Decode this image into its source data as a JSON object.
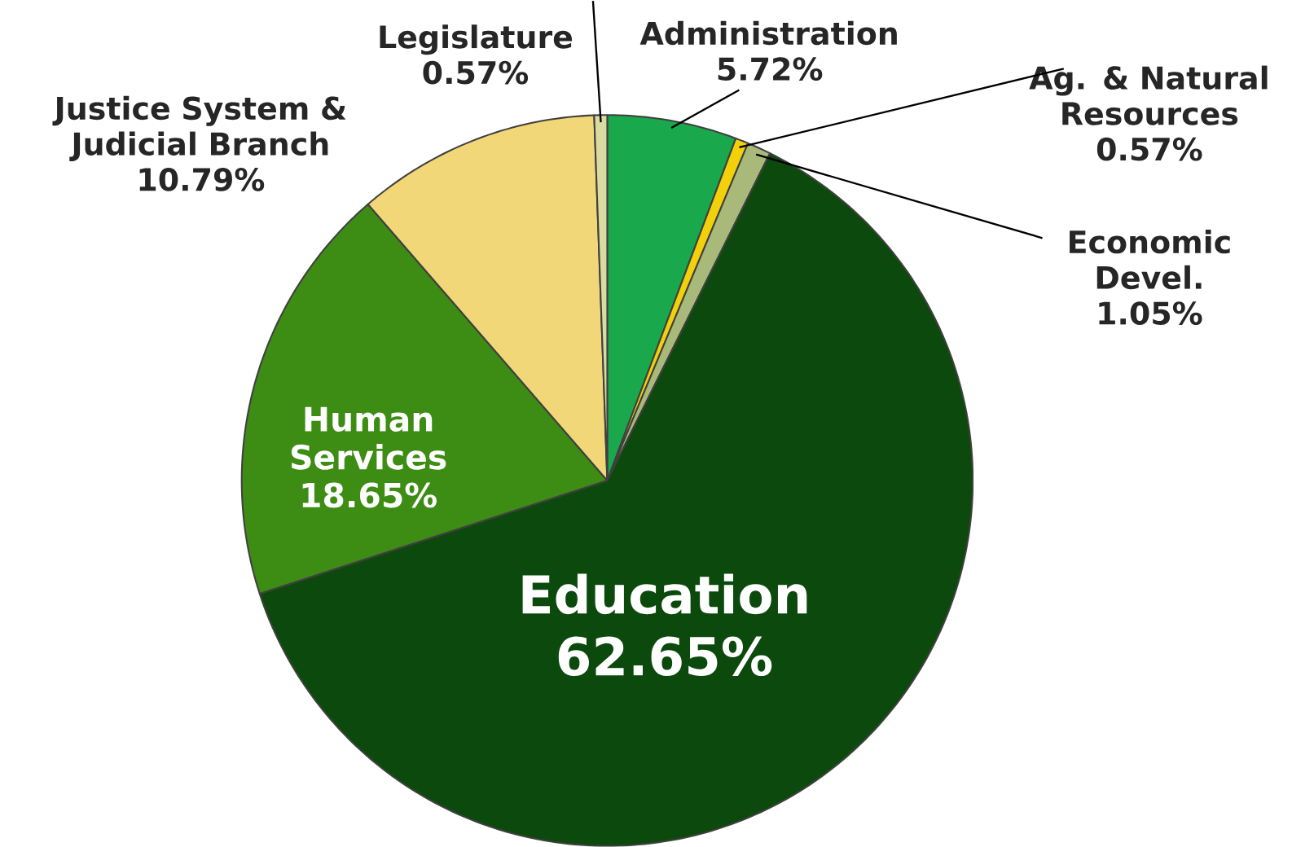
{
  "chart_data": {
    "type": "pie",
    "categories": [
      "Administration",
      "Ag. & Natural Resources",
      "Economic Devel.",
      "Education",
      "Human Services",
      "Justice System & Judicial Branch",
      "Legislature"
    ],
    "values": [
      5.72,
      0.57,
      1.05,
      62.65,
      18.65,
      10.79,
      0.57
    ],
    "value_labels": [
      "5.72%",
      "0.57%",
      "1.05%",
      "62.65%",
      "18.65%",
      "10.79%",
      "0.57%"
    ],
    "colors": [
      "#1aa84c",
      "#f2d00a",
      "#a9b97a",
      "#0b4a0c",
      "#3d8c14",
      "#f1d777",
      "#d9dba0"
    ]
  }
}
